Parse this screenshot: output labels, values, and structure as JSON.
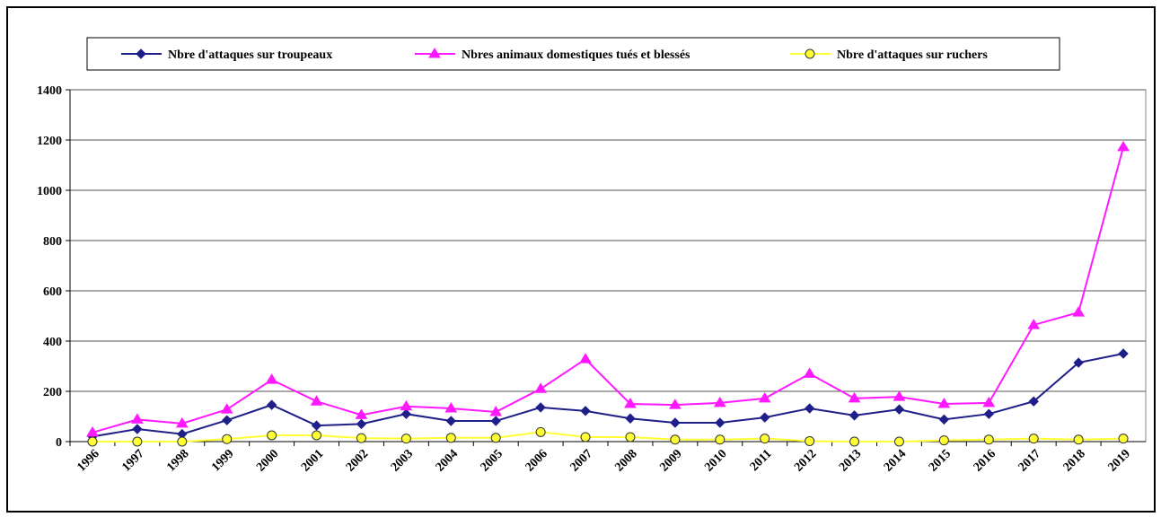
{
  "chart_data": {
    "type": "line",
    "categories": [
      "1996",
      "1997",
      "1998",
      "1999",
      "2000",
      "2001",
      "2002",
      "2003",
      "2004",
      "2005",
      "2006",
      "2007",
      "2008",
      "2009",
      "2010",
      "2011",
      "2012",
      "2013",
      "2014",
      "2015",
      "2016",
      "2017",
      "2018",
      "2019"
    ],
    "series": [
      {
        "name": "Nbre d'attaques sur troupeaux",
        "color": "#1f1f8a",
        "marker": "diamond",
        "values": [
          20,
          50,
          30,
          85,
          146,
          64,
          70,
          110,
          82,
          82,
          136,
          122,
          92,
          75,
          75,
          96,
          132,
          104,
          128,
          88,
          110,
          160,
          314,
          350
        ]
      },
      {
        "name": "Nbres animaux domestiques tués et blessés",
        "color": "#ff19ff",
        "marker": "triangle",
        "values": [
          36,
          88,
          72,
          128,
          246,
          160,
          106,
          140,
          132,
          118,
          210,
          328,
          150,
          146,
          154,
          172,
          270,
          172,
          178,
          150,
          154,
          464,
          514,
          1172
        ]
      },
      {
        "name": "Nbre d'attaques sur ruchers",
        "color": "#ffff33",
        "marker": "circle",
        "values": [
          0,
          0,
          0,
          10,
          25,
          25,
          14,
          12,
          15,
          15,
          38,
          18,
          18,
          8,
          8,
          12,
          2,
          0,
          0,
          5,
          8,
          12,
          8,
          12
        ]
      }
    ],
    "ylim": [
      0,
      1400
    ],
    "yticks": [
      0,
      200,
      400,
      600,
      800,
      1000,
      1200,
      1400
    ],
    "grid": true,
    "legend": "top"
  }
}
